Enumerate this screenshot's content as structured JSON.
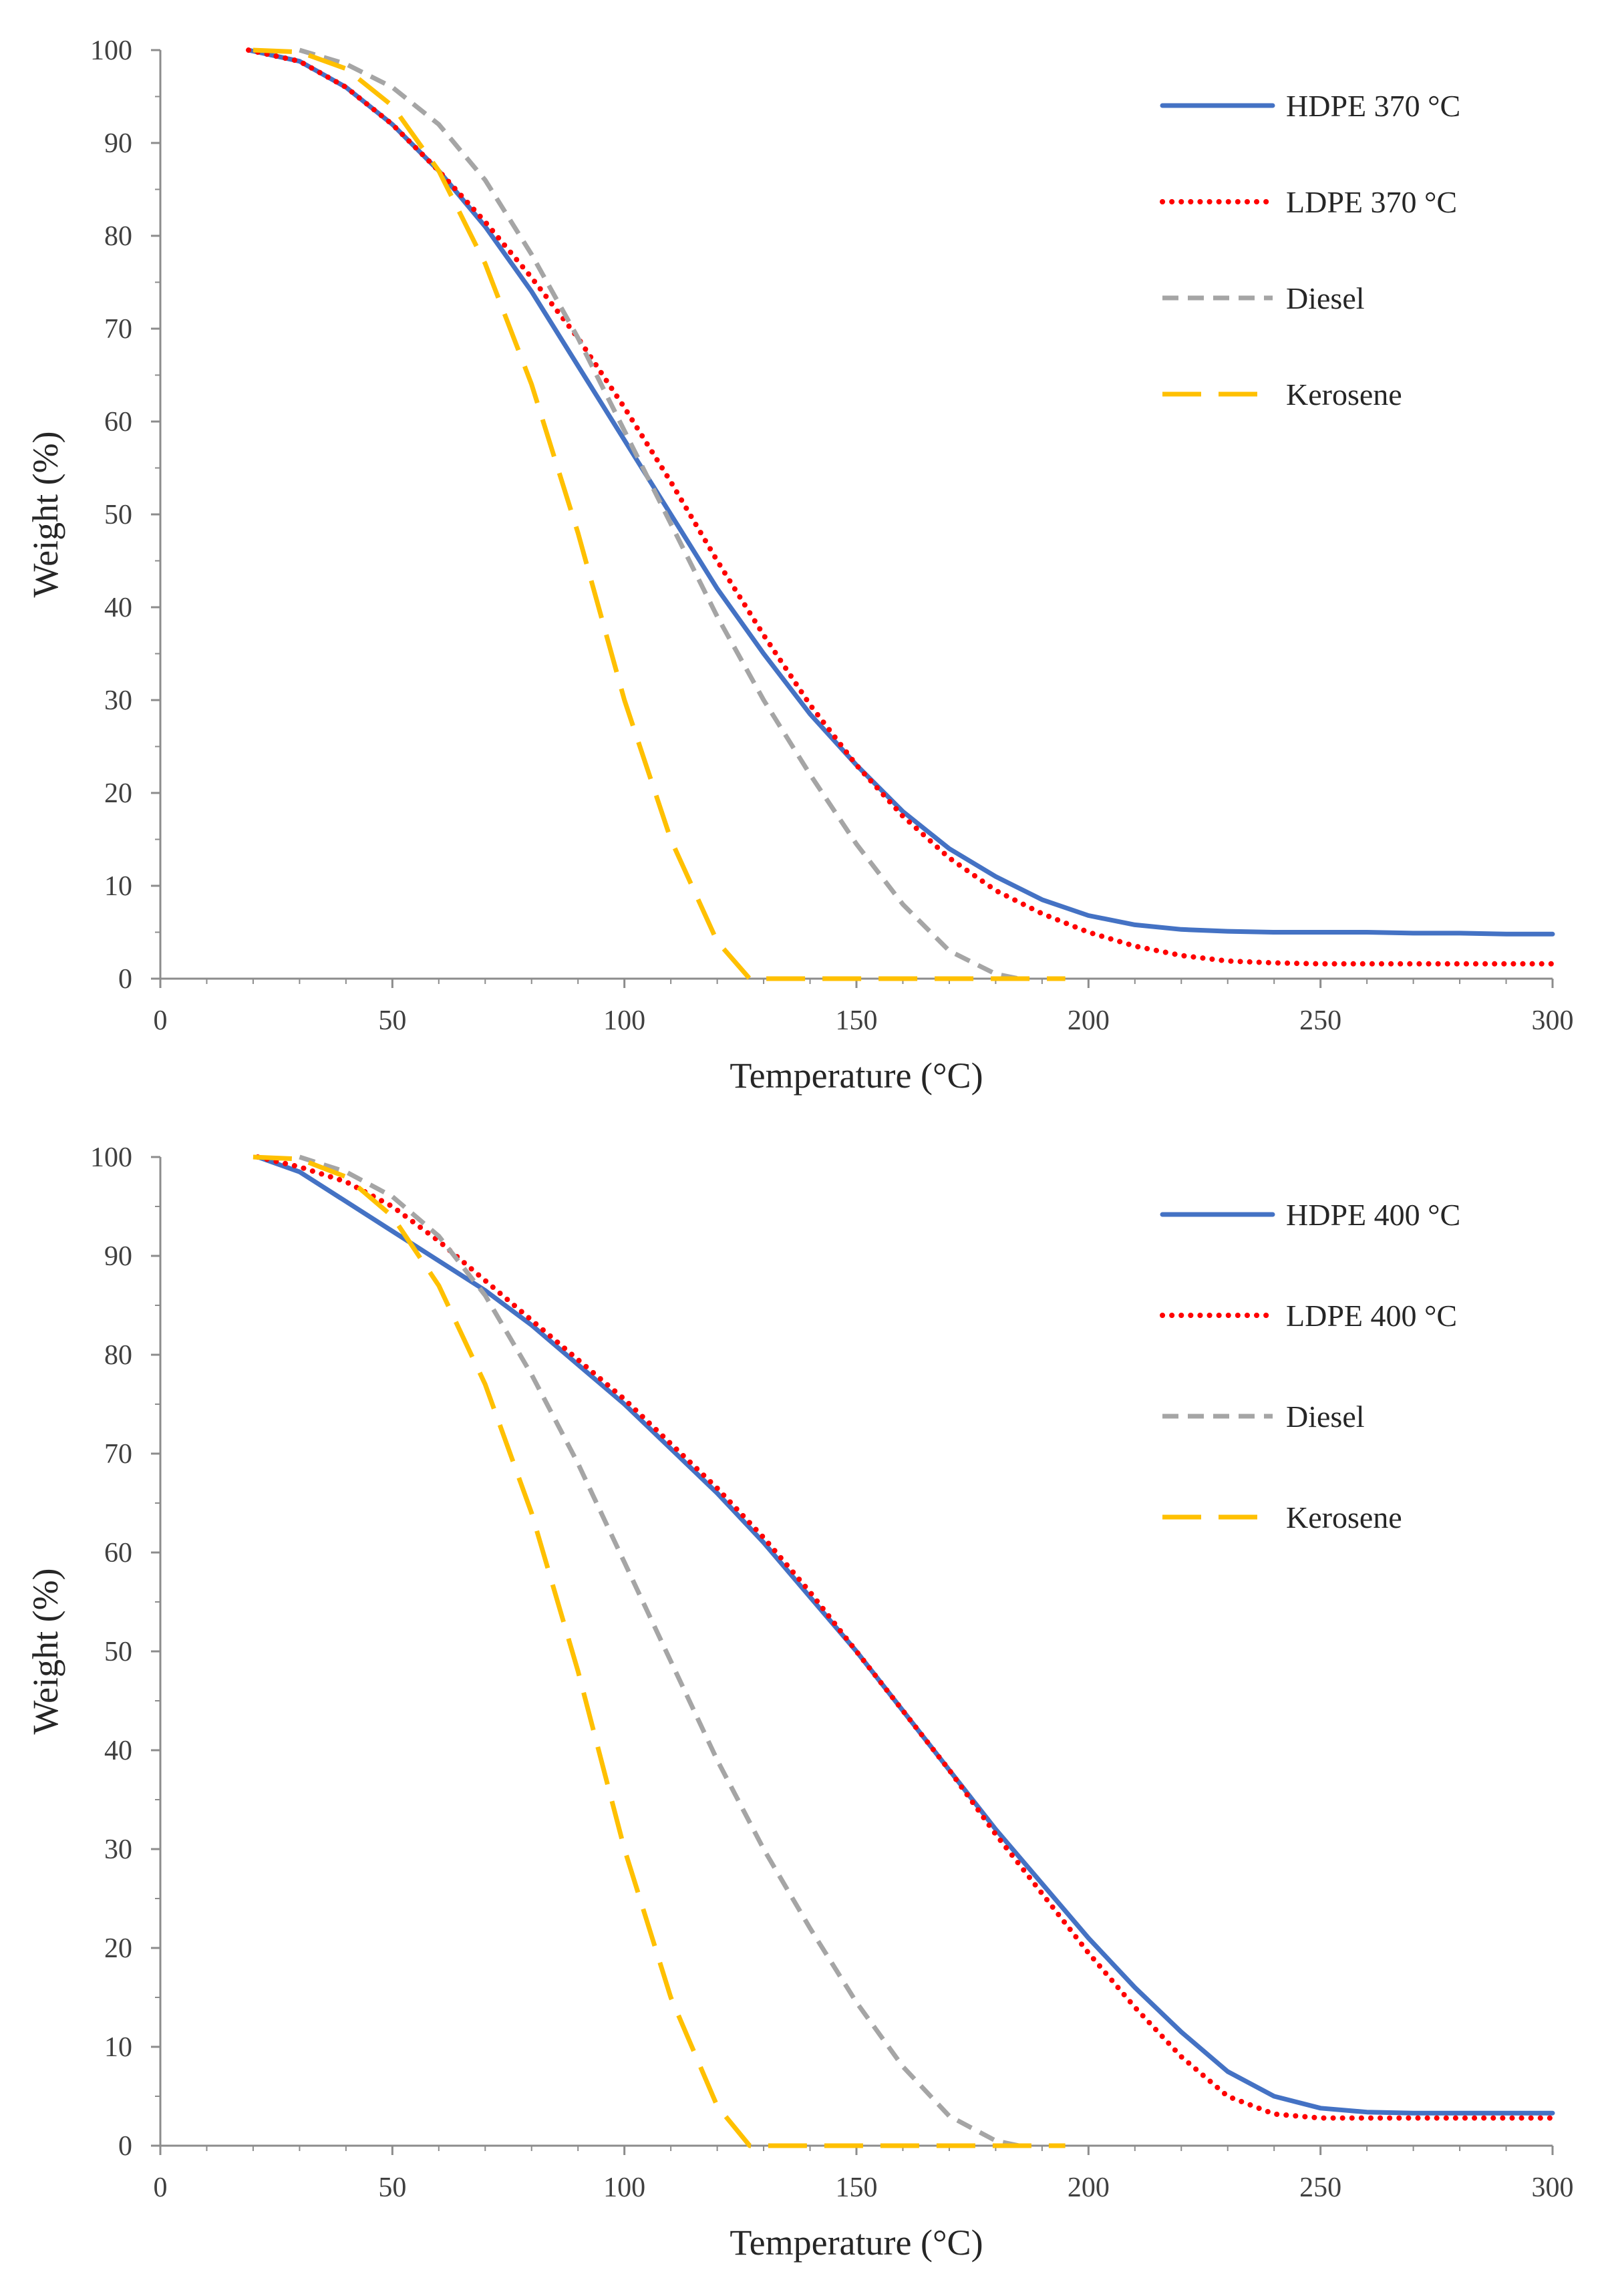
{
  "chart_data": [
    {
      "type": "line",
      "title": "",
      "xlabel": "Temperature (°C)",
      "ylabel": "Weight (%)",
      "xlim": [
        0,
        300
      ],
      "ylim": [
        0,
        100
      ],
      "xticks": [
        0,
        50,
        100,
        150,
        200,
        250,
        300
      ],
      "yticks": [
        0,
        10,
        20,
        30,
        40,
        50,
        60,
        70,
        80,
        90,
        100
      ],
      "grid": false,
      "legend_position": "top-right",
      "series": [
        {
          "name": "HDPE 370 °C",
          "color": "#4472C4",
          "dash": "solid",
          "x": [
            19,
            30,
            40,
            50,
            60,
            70,
            80,
            90,
            100,
            110,
            120,
            130,
            140,
            150,
            160,
            170,
            180,
            190,
            200,
            210,
            220,
            230,
            240,
            250,
            260,
            270,
            280,
            290,
            300
          ],
          "y": [
            100,
            98.8,
            96,
            92,
            87,
            81,
            74,
            66,
            58,
            50,
            42,
            35,
            28.5,
            23,
            18,
            14,
            11,
            8.5,
            6.8,
            5.8,
            5.3,
            5.1,
            5.0,
            5.0,
            5.0,
            4.9,
            4.9,
            4.8,
            4.8
          ]
        },
        {
          "name": "LDPE 370 °C",
          "color": "#FF0000",
          "dash": "dotted",
          "x": [
            19,
            30,
            40,
            50,
            60,
            70,
            80,
            90,
            100,
            110,
            120,
            130,
            140,
            150,
            160,
            170,
            180,
            190,
            200,
            210,
            220,
            230,
            240,
            250,
            260,
            270,
            280,
            290,
            300
          ],
          "y": [
            100,
            98.8,
            96,
            92,
            87,
            81.5,
            75.5,
            69,
            61.5,
            53.5,
            45,
            37,
            29.5,
            23,
            17.5,
            13,
            9.5,
            7,
            5,
            3.5,
            2.5,
            1.9,
            1.7,
            1.6,
            1.6,
            1.6,
            1.6,
            1.6,
            1.6
          ]
        },
        {
          "name": "Diesel",
          "color": "#A5A5A5",
          "dash": "short-dash",
          "x": [
            30,
            40,
            50,
            60,
            70,
            80,
            90,
            100,
            110,
            120,
            130,
            140,
            150,
            160,
            170,
            180,
            185
          ],
          "y": [
            100,
            98.5,
            96,
            92,
            86,
            78,
            69,
            59,
            49,
            39,
            30,
            22,
            14.5,
            8,
            3,
            0.5,
            0
          ]
        },
        {
          "name": "Kerosene",
          "color": "#FFC000",
          "dash": "long-dash",
          "x": [
            20,
            30,
            40,
            50,
            60,
            70,
            80,
            90,
            100,
            110,
            120,
            127,
            130,
            140,
            150,
            160,
            170,
            180,
            190,
            195
          ],
          "y": [
            100,
            99.8,
            98,
            94,
            87,
            77,
            64,
            48,
            30,
            15,
            4,
            0,
            0,
            0,
            0,
            0,
            0,
            0,
            0,
            0
          ]
        }
      ]
    },
    {
      "type": "line",
      "title": "",
      "xlabel": "Temperature (°C)",
      "ylabel": "Weight (%)",
      "xlim": [
        0,
        300
      ],
      "ylim": [
        0,
        100
      ],
      "xticks": [
        0,
        50,
        100,
        150,
        200,
        250,
        300
      ],
      "yticks": [
        0,
        10,
        20,
        30,
        40,
        50,
        60,
        70,
        80,
        90,
        100
      ],
      "grid": false,
      "legend_position": "top-right",
      "series": [
        {
          "name": "HDPE 400 °C",
          "color": "#4472C4",
          "dash": "solid",
          "x": [
            21,
            30,
            40,
            50,
            60,
            70,
            80,
            90,
            100,
            110,
            120,
            130,
            140,
            150,
            160,
            170,
            180,
            190,
            200,
            210,
            220,
            230,
            240,
            250,
            260,
            270,
            280,
            290,
            300
          ],
          "y": [
            100,
            98.5,
            95.5,
            92.5,
            89.5,
            86.5,
            83,
            79,
            75,
            70.5,
            66,
            61,
            55.5,
            50,
            44,
            38,
            32,
            26.5,
            21,
            16,
            11.5,
            7.5,
            5,
            3.8,
            3.4,
            3.3,
            3.3,
            3.3,
            3.3
          ]
        },
        {
          "name": "LDPE 400 °C",
          "color": "#FF0000",
          "dash": "dotted",
          "x": [
            21,
            30,
            40,
            50,
            60,
            70,
            80,
            90,
            100,
            110,
            120,
            130,
            140,
            150,
            160,
            170,
            180,
            190,
            200,
            210,
            220,
            230,
            240,
            250,
            260,
            270,
            280,
            290,
            300
          ],
          "y": [
            100,
            99,
            97.5,
            95,
            91.5,
            87.5,
            83.5,
            79.5,
            75.5,
            71,
            66.5,
            61.5,
            56,
            50,
            44,
            38,
            31.5,
            25.5,
            19.5,
            14,
            9,
            5,
            3.2,
            2.8,
            2.8,
            2.8,
            2.8,
            2.8,
            2.8
          ]
        },
        {
          "name": "Diesel",
          "color": "#A5A5A5",
          "dash": "short-dash",
          "x": [
            30,
            40,
            50,
            60,
            70,
            80,
            90,
            100,
            110,
            120,
            130,
            140,
            150,
            160,
            170,
            180,
            185
          ],
          "y": [
            100,
            98.5,
            96,
            92,
            86,
            78,
            69,
            59,
            49,
            39,
            30,
            22,
            14.5,
            8,
            3,
            0.5,
            0
          ]
        },
        {
          "name": "Kerosene",
          "color": "#FFC000",
          "dash": "long-dash",
          "x": [
            20,
            30,
            40,
            50,
            60,
            70,
            80,
            90,
            100,
            110,
            120,
            127,
            130,
            140,
            150,
            160,
            170,
            180,
            190,
            195
          ],
          "y": [
            100,
            99.8,
            98,
            94,
            87,
            77,
            64,
            48,
            30,
            15,
            4,
            0,
            0,
            0,
            0,
            0,
            0,
            0,
            0,
            0
          ]
        }
      ]
    }
  ]
}
